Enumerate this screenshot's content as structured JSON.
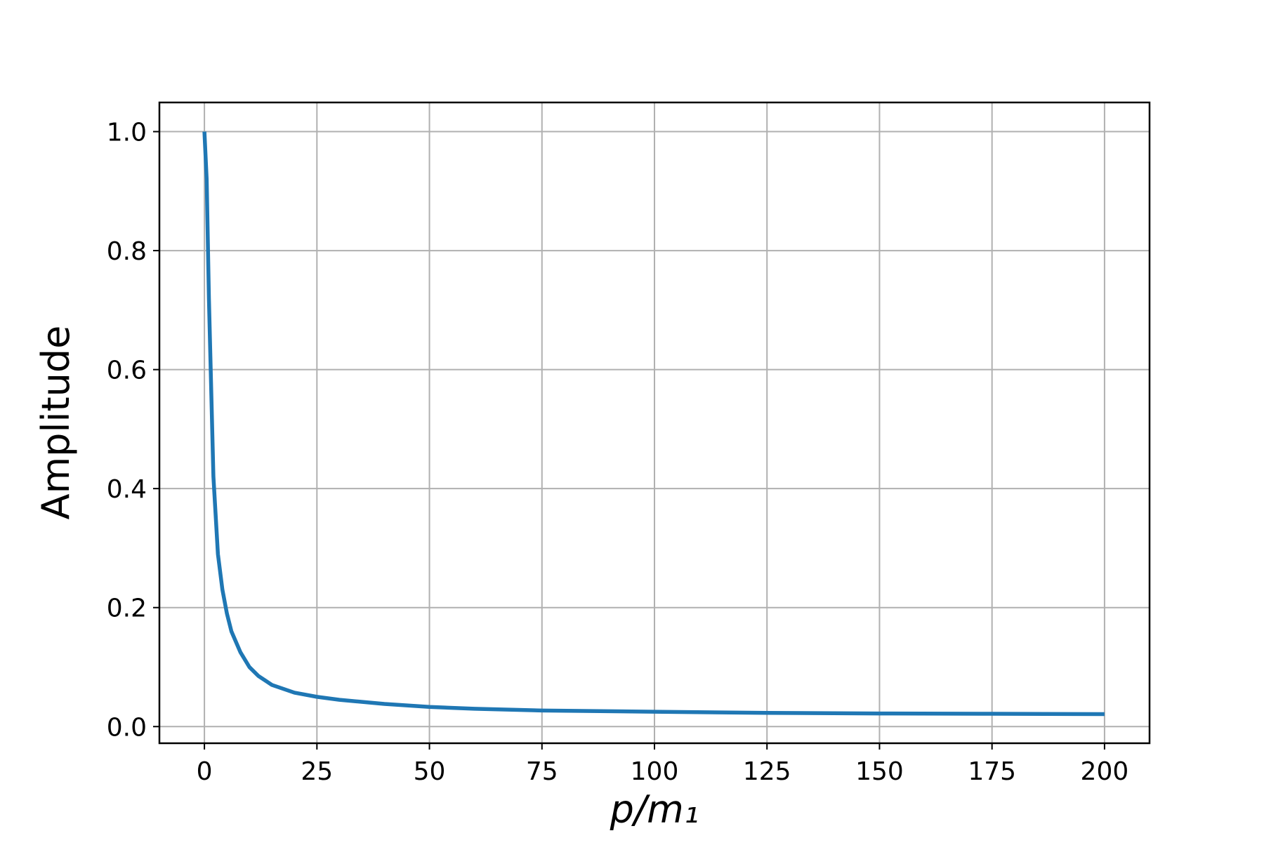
{
  "chart_data": {
    "type": "line",
    "xlabel": "p/m₁",
    "ylabel": "Amplitude",
    "x": [
      0,
      0.5,
      1,
      1.5,
      2,
      3,
      4,
      5,
      6,
      8,
      10,
      12,
      15,
      20,
      25,
      30,
      40,
      50,
      60,
      75,
      100,
      125,
      150,
      175,
      200
    ],
    "series": [
      {
        "name": "Amplitude",
        "color": "#1f77b4",
        "values": [
          1.0,
          0.92,
          0.72,
          0.57,
          0.42,
          0.29,
          0.23,
          0.19,
          0.16,
          0.125,
          0.1,
          0.085,
          0.07,
          0.057,
          0.05,
          0.045,
          0.038,
          0.033,
          0.03,
          0.027,
          0.025,
          0.023,
          0.022,
          0.0215,
          0.021
        ]
      }
    ],
    "xlim": [
      -10,
      210
    ],
    "ylim": [
      -0.028,
      1.049
    ],
    "xticks": [
      0,
      25,
      50,
      75,
      100,
      125,
      150,
      175,
      200
    ],
    "yticks": [
      {
        "value": 0,
        "label": "0.0"
      },
      0.2,
      0.4,
      0.6,
      0.8,
      {
        "value": 1,
        "label": "1.0"
      }
    ],
    "grid": true
  }
}
